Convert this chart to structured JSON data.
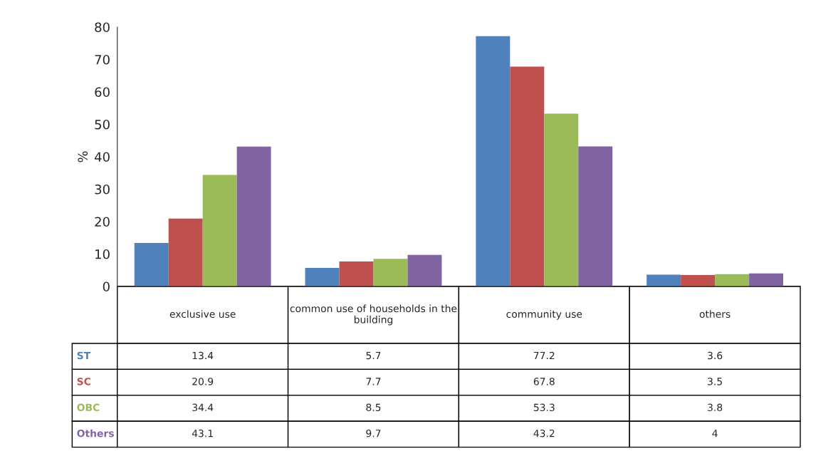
{
  "chart_data": {
    "type": "bar",
    "ylabel": "%",
    "categories": [
      "exclusive use",
      "common use of households in the building",
      "community use",
      "others"
    ],
    "series": [
      {
        "name": "ST",
        "color": "#4f81bd",
        "values": [
          13.4,
          5.7,
          77.2,
          3.6
        ]
      },
      {
        "name": "SC",
        "color": "#c0504d",
        "values": [
          20.9,
          7.7,
          67.8,
          3.5
        ]
      },
      {
        "name": "OBC",
        "color": "#9bbb59",
        "values": [
          34.4,
          8.5,
          53.3,
          3.8
        ]
      },
      {
        "name": "Others",
        "color": "#8064a2",
        "values": [
          43.1,
          9.7,
          43.2,
          4
        ]
      }
    ],
    "ylim": [
      0,
      80
    ],
    "yticks": [
      0,
      10,
      20,
      30,
      40,
      50,
      60,
      70,
      80
    ],
    "grid": false,
    "data_labels": true
  }
}
